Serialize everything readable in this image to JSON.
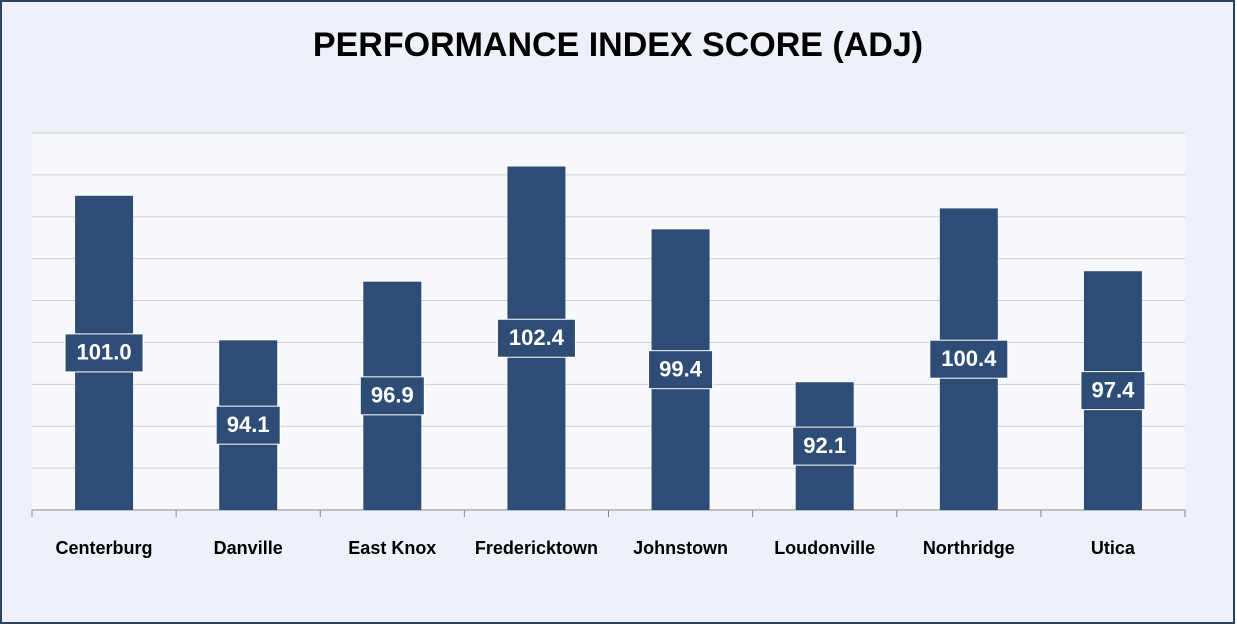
{
  "chart_data": {
    "type": "bar",
    "title": "PERFORMANCE INDEX SCORE (ADJ)",
    "categories": [
      "Centerburg",
      "Danville",
      "East Knox",
      "Fredericktown",
      "Johnstown",
      "Loudonville",
      "Northridge",
      "Utica"
    ],
    "values": [
      101.0,
      94.1,
      96.9,
      102.4,
      99.4,
      92.1,
      100.4,
      97.4
    ],
    "value_labels": [
      "101.0",
      "94.1",
      "96.9",
      "102.4",
      "99.4",
      "92.1",
      "100.4",
      "97.4"
    ],
    "color": "#2e4d76",
    "ylim": [
      86,
      104
    ],
    "yticks": [
      86,
      88,
      90,
      92,
      94,
      96,
      98,
      100,
      102,
      104
    ],
    "grid": true
  }
}
